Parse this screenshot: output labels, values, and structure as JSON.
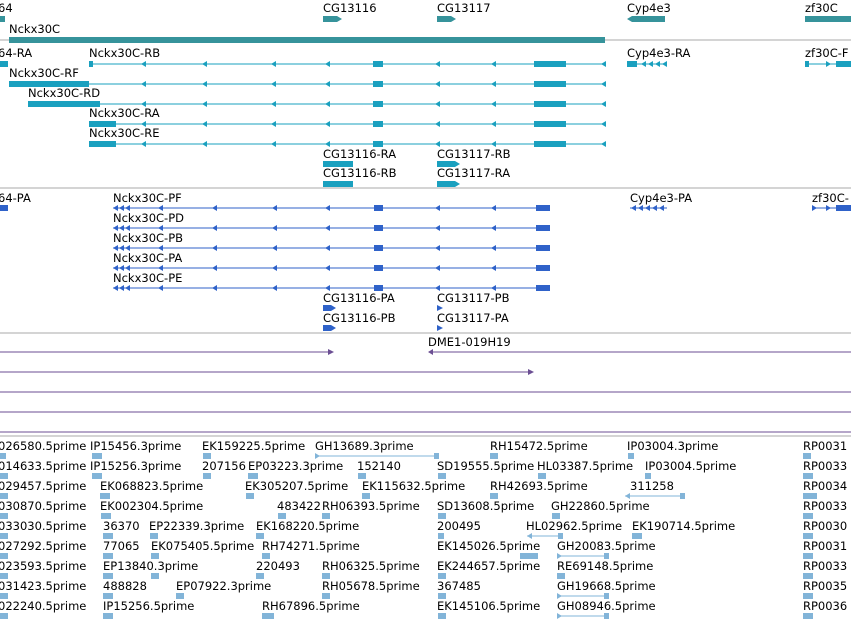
{
  "colors": {
    "gene": "#36939b",
    "transcript": "#1aa0bf",
    "protein": "#2f62c9",
    "clone": "#6b4e93",
    "est": "#82b4d8",
    "divider": "#a8a8a8"
  },
  "tracks": {
    "genes": {
      "items": [
        {
          "label": "64",
          "strand": "-"
        },
        {
          "label": "Nckx30C",
          "strand": "-"
        },
        {
          "label": "CG13116",
          "strand": "+"
        },
        {
          "label": "CG13117",
          "strand": "+"
        },
        {
          "label": "Cyp4e3",
          "strand": "-"
        },
        {
          "label": "zf30C",
          "strand": "+"
        }
      ]
    },
    "transcripts": {
      "items": [
        {
          "label": "64-RA"
        },
        {
          "label": "Nckx30C-RB"
        },
        {
          "label": "Nckx30C-RF"
        },
        {
          "label": "Nckx30C-RD"
        },
        {
          "label": "Nckx30C-RA"
        },
        {
          "label": "Nckx30C-RE"
        },
        {
          "label": "CG13116-RA"
        },
        {
          "label": "CG13116-RB"
        },
        {
          "label": "CG13117-RB"
        },
        {
          "label": "CG13117-RA"
        },
        {
          "label": "Cyp4e3-RA"
        },
        {
          "label": "zf30C-F"
        }
      ]
    },
    "proteins": {
      "items": [
        {
          "label": "64-PA"
        },
        {
          "label": "Nckx30C-PF"
        },
        {
          "label": "Nckx30C-PD"
        },
        {
          "label": "Nckx30C-PB"
        },
        {
          "label": "Nckx30C-PA"
        },
        {
          "label": "Nckx30C-PE"
        },
        {
          "label": "CG13116-PA"
        },
        {
          "label": "CG13116-PB"
        },
        {
          "label": "CG13117-PB"
        },
        {
          "label": "CG13117-PA"
        },
        {
          "label": "Cyp4e3-PA"
        },
        {
          "label": "zf30C-"
        }
      ]
    },
    "clones": {
      "items": [
        {
          "label": "DME1-019H19"
        }
      ]
    },
    "ests": {
      "rows": [
        [
          "026580.5prime",
          "IP15456.3prime",
          "EK159225.5prime",
          "GH13689.3prime",
          "RH15472.5prime",
          "IP03004.3prime",
          "RP0031"
        ],
        [
          "014633.5prime",
          "IP15256.3prime",
          "207156",
          "EP03223.3prime",
          "152140",
          "SD19555.5prime",
          "HL03387.5prime",
          "IP03004.5prime",
          "RP0033"
        ],
        [
          "029457.5prime",
          "EK068823.5prime",
          "EK305207.5prime",
          "EK115632.5prime",
          "RH42693.5prime",
          "311258",
          "RP0034"
        ],
        [
          "030870.5prime",
          "EK002304.5prime",
          "483422",
          "RH06393.5prime",
          "SD13608.5prime",
          "GH22860.5prime",
          "RP0033"
        ],
        [
          "033030.5prime",
          "36370",
          "EP22339.3prime",
          "EK168220.5prime",
          "200495",
          "HL02962.5prime",
          "EK190714.5prime",
          "RP0030"
        ],
        [
          "027292.5prime",
          "77065",
          "EK075405.5prime",
          "RH74271.5prime",
          "EK145026.5prime",
          "GH20083.5prime",
          "RP0031"
        ],
        [
          "023593.5prime",
          "EP13840.3prime",
          "220493",
          "RH06325.5prime",
          "EK244657.5prime",
          "RE69148.5prime",
          "RP0033"
        ],
        [
          "031423.5prime",
          "488828",
          "EP07922.3prime",
          "RH05678.5prime",
          "367485",
          "GH19668.5prime",
          "RP0035"
        ],
        [
          "022240.5prime",
          "IP15256.5prime",
          "RH67896.5prime",
          "EK145106.5prime",
          "GH08946.5prime",
          "RP0036"
        ]
      ]
    }
  }
}
